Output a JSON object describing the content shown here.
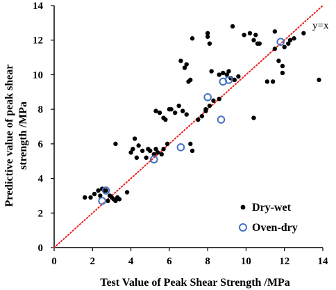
{
  "chart_data": {
    "type": "scatter",
    "title": "",
    "xlabel": "Test Value of Peak Shear Strength /MPa",
    "ylabel_lines": [
      "Predictive value of peak shear",
      "strength /MPa"
    ],
    "xlim": [
      0,
      14
    ],
    "ylim": [
      0,
      14
    ],
    "xticks": [
      0,
      2,
      4,
      6,
      8,
      10,
      12,
      14
    ],
    "yticks": [
      0,
      2,
      4,
      6,
      8,
      10,
      12,
      14
    ],
    "grid": false,
    "legend_position": "bottom-right",
    "reference_line": {
      "label": "y=x",
      "color": "#e8201e",
      "style": "dotted"
    },
    "series": [
      {
        "name": "Dry-wet",
        "marker": "filled-circle",
        "color": "#000000",
        "points": [
          [
            1.6,
            2.9
          ],
          [
            1.9,
            2.9
          ],
          [
            2.1,
            3.1
          ],
          [
            2.3,
            3.3
          ],
          [
            2.4,
            3.0
          ],
          [
            2.5,
            3.4
          ],
          [
            2.6,
            3.3
          ],
          [
            2.7,
            3.3
          ],
          [
            2.8,
            2.7
          ],
          [
            2.9,
            3.0
          ],
          [
            3.0,
            2.9
          ],
          [
            3.1,
            2.8
          ],
          [
            3.2,
            2.7
          ],
          [
            3.3,
            2.9
          ],
          [
            3.4,
            2.8
          ],
          [
            3.8,
            3.2
          ],
          [
            3.2,
            6.0
          ],
          [
            4.0,
            5.5
          ],
          [
            4.1,
            5.7
          ],
          [
            4.2,
            6.3
          ],
          [
            4.3,
            5.2
          ],
          [
            4.4,
            5.9
          ],
          [
            4.6,
            5.6
          ],
          [
            4.8,
            5.2
          ],
          [
            4.9,
            5.7
          ],
          [
            5.0,
            5.6
          ],
          [
            5.2,
            5.4
          ],
          [
            5.3,
            5.7
          ],
          [
            5.4,
            5.5
          ],
          [
            5.6,
            5.4
          ],
          [
            5.7,
            5.7
          ],
          [
            5.9,
            6.0
          ],
          [
            5.3,
            7.9
          ],
          [
            5.5,
            7.8
          ],
          [
            5.7,
            7.5
          ],
          [
            5.8,
            7.4
          ],
          [
            6.0,
            8.0
          ],
          [
            6.1,
            8.0
          ],
          [
            6.3,
            7.8
          ],
          [
            6.5,
            8.2
          ],
          [
            6.7,
            7.9
          ],
          [
            6.9,
            7.7
          ],
          [
            7.1,
            6.0
          ],
          [
            7.2,
            5.6
          ],
          [
            7.5,
            7.4
          ],
          [
            7.7,
            7.6
          ],
          [
            7.9,
            7.9
          ],
          [
            7.9,
            8.0
          ],
          [
            8.1,
            8.2
          ],
          [
            8.3,
            8.5
          ],
          [
            8.6,
            8.6
          ],
          [
            6.6,
            10.8
          ],
          [
            6.8,
            10.4
          ],
          [
            6.9,
            10.6
          ],
          [
            7.0,
            9.6
          ],
          [
            7.1,
            9.7
          ],
          [
            7.2,
            12.1
          ],
          [
            8.0,
            12.2
          ],
          [
            8.0,
            12.4
          ],
          [
            8.1,
            11.8
          ],
          [
            8.2,
            10.2
          ],
          [
            8.6,
            10.0
          ],
          [
            8.8,
            10.1
          ],
          [
            9.0,
            10.0
          ],
          [
            9.1,
            10.2
          ],
          [
            9.2,
            9.8
          ],
          [
            9.4,
            9.7
          ],
          [
            9.6,
            9.9
          ],
          [
            9.3,
            12.8
          ],
          [
            9.9,
            12.3
          ],
          [
            10.2,
            12.4
          ],
          [
            10.4,
            12.0
          ],
          [
            10.5,
            12.3
          ],
          [
            10.6,
            11.8
          ],
          [
            10.7,
            11.8
          ],
          [
            10.4,
            7.5
          ],
          [
            11.1,
            9.6
          ],
          [
            11.4,
            9.6
          ],
          [
            11.5,
            11.5
          ],
          [
            11.7,
            10.8
          ],
          [
            11.9,
            10.1
          ],
          [
            11.9,
            10.5
          ],
          [
            11.5,
            12.5
          ],
          [
            12.0,
            11.6
          ],
          [
            12.2,
            11.8
          ],
          [
            12.3,
            12.0
          ],
          [
            12.5,
            12.1
          ],
          [
            13.0,
            12.4
          ],
          [
            13.8,
            9.7
          ]
        ]
      },
      {
        "name": "Oven-dry",
        "marker": "open-circle",
        "color": "#4472c4",
        "points": [
          [
            2.5,
            2.7
          ],
          [
            2.7,
            3.3
          ],
          [
            5.2,
            5.1
          ],
          [
            6.6,
            5.8
          ],
          [
            8.0,
            8.7
          ],
          [
            8.7,
            7.4
          ],
          [
            8.8,
            9.6
          ],
          [
            9.1,
            9.7
          ],
          [
            11.8,
            11.9
          ]
        ]
      }
    ]
  }
}
